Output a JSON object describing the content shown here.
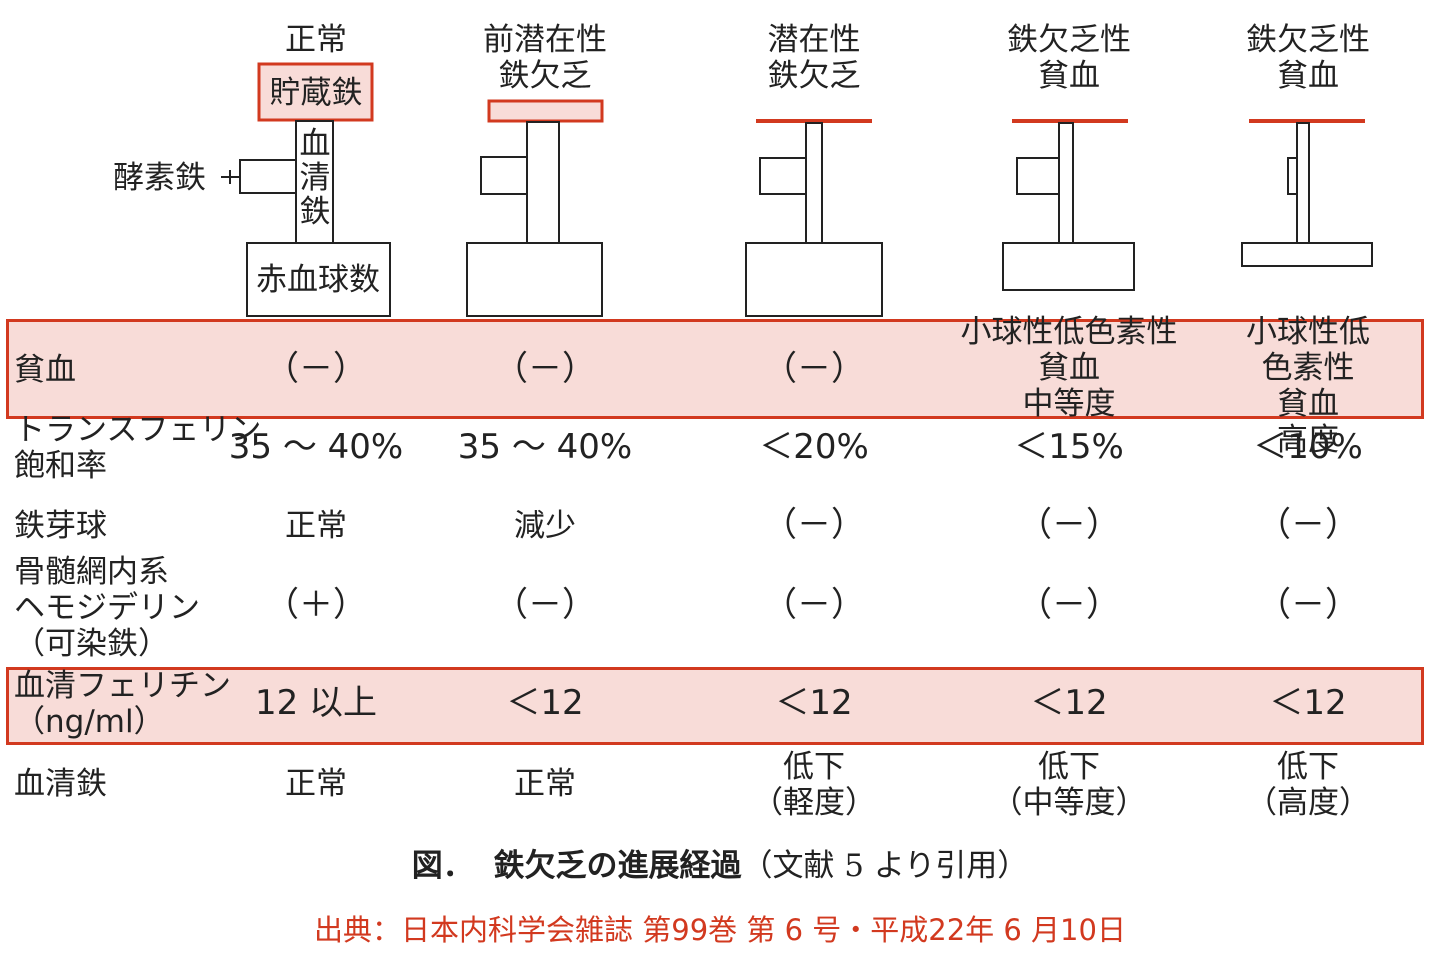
{
  "columns": [
    {
      "key": "normal",
      "label": "正常"
    },
    {
      "key": "prelatent",
      "label": "前潜在性\n鉄欠乏"
    },
    {
      "key": "latent",
      "label": "潜在性\n鉄欠乏"
    },
    {
      "key": "anemia_moderate",
      "label": "鉄欠乏性\n貧血"
    },
    {
      "key": "anemia_severe",
      "label": "鉄欠乏性\n貧血"
    }
  ],
  "diagram_labels": {
    "storage_iron": "貯蔵鉄",
    "enzyme_iron": "酵素鉄",
    "serum_iron": "血\n清\n鉄",
    "rbc_count": "赤血球数"
  },
  "diagram_levels": {
    "storage_iron": [
      1.0,
      0.45,
      0.0,
      0.0,
      0.0
    ],
    "enzyme_iron": [
      1.0,
      1.0,
      1.0,
      1.0,
      0.3
    ],
    "rbc_count": [
      1.0,
      1.0,
      1.0,
      0.6,
      0.25
    ]
  },
  "rows": [
    {
      "key": "anemia",
      "label": "貧血",
      "highlight": true,
      "values": [
        "（－）",
        "（－）",
        "（－）",
        "小球性低色素性\n貧血\n中等度",
        "小球性低色素性\n貧血\n高度"
      ]
    },
    {
      "key": "transferrin",
      "label": "トランスフェリン\n飽和率",
      "highlight": false,
      "values": [
        "35 ～ 40%",
        "35 ～ 40%",
        "＜20%",
        "＜15%",
        "＜10%"
      ]
    },
    {
      "key": "sideroblast",
      "label": "鉄芽球",
      "highlight": false,
      "values": [
        "正常",
        "減少",
        "（－）",
        "（－）",
        "（－）"
      ]
    },
    {
      "key": "hemosiderin",
      "label": "骨髄網内系\nヘモジデリン\n（可染鉄）",
      "highlight": false,
      "values": [
        "（＋）",
        "（－）",
        "（－）",
        "（－）",
        "（－）"
      ]
    },
    {
      "key": "ferritin",
      "label": "血清フェリチン\n（ng/ml）",
      "highlight": true,
      "values": [
        "12 以上",
        "＜12",
        "＜12",
        "＜12",
        "＜12"
      ]
    },
    {
      "key": "serum_iron",
      "label": "血清鉄",
      "highlight": false,
      "values": [
        "正常",
        "正常",
        "低下\n（軽度）",
        "低下\n（中等度）",
        "低下\n（高度）"
      ]
    }
  ],
  "caption": {
    "prefix": "図．",
    "title": "鉄欠乏の進展経過",
    "ref": "（文献 5 より引用）"
  },
  "source": "出典：日本内科学会雑誌 第99巻 第 6 号・平成22年 6 月10日",
  "colors": {
    "accent": "#d2391f",
    "highlight_fill": "#f8dcd8",
    "stroke": "#222222"
  }
}
